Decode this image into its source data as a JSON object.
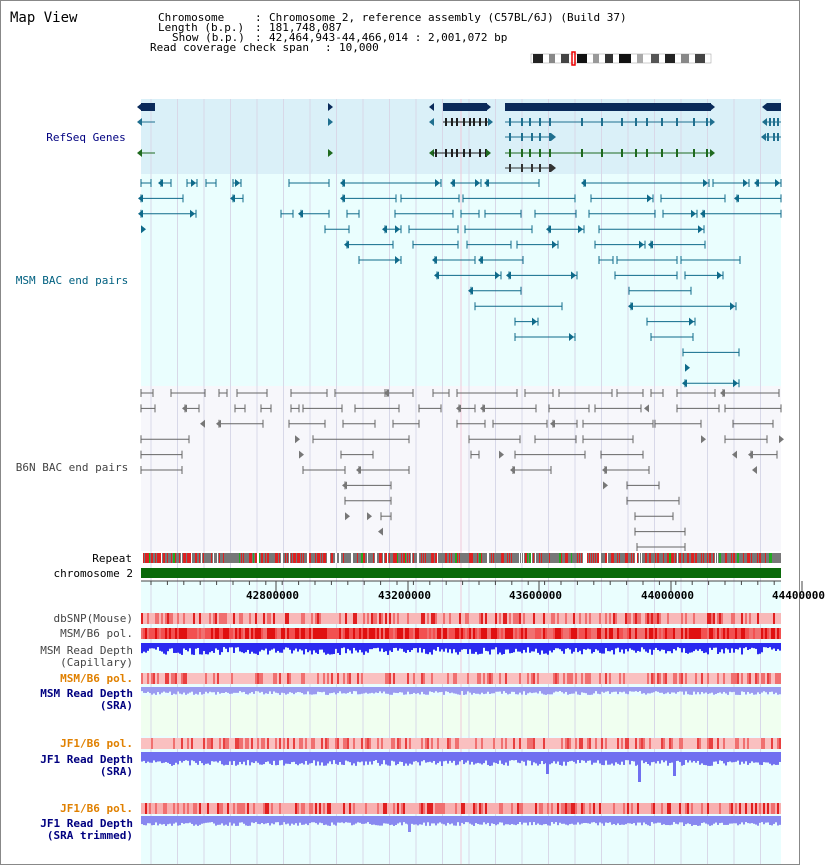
{
  "page": {
    "title": "Map View"
  },
  "header": {
    "chromosome_key": "Chromosome",
    "chromosome_val": "Chromosome 2, reference assembly (C57BL/6J) (Build 37)",
    "length_key": "Length (b.p.)",
    "length_val": "181,748,087",
    "show_key": "Show (b.p.)",
    "show_val": "42,464,943-44,466,014 : 2,001,072 bp",
    "coverage_key": "Read coverage check span",
    "coverage_val": "10,000"
  },
  "tracks": {
    "refseq": "RefSeq Genes",
    "msm_bac": "MSM BAC end pairs",
    "b6n_bac": "B6N BAC end pairs",
    "repeat": "Repeat",
    "chromosome": "chromosome 2",
    "dbsnp": "dbSNP(Mouse)",
    "msm_b6_pol": "MSM/B6 pol.",
    "msm_depth_cap_1": "MSM Read Depth",
    "msm_depth_cap_2": "(Capillary)",
    "msm_b6_pol_2": "MSM/B6 pol.",
    "msm_depth_sra_1": "MSM Read Depth",
    "msm_depth_sra_2": "(SRA)",
    "jf1_b6_pol": "JF1/B6 pol.",
    "jf1_depth_sra_1": "JF1 Read Depth",
    "jf1_depth_sra_2": "(SRA)",
    "jf1_b6_pol_2": "JF1/B6 pol.",
    "jf1_depth_trim_1": "JF1 Read Depth",
    "jf1_depth_trim_2": "(SRA trimmed)"
  },
  "axis": {
    "ticks": [
      "42800000",
      "43200000",
      "43600000",
      "44000000",
      "44400000"
    ]
  },
  "colors": {
    "refseq_bg": "#daf0f8",
    "msm_bg": "#eafefe",
    "b6n_bg": "#f7f7fb",
    "gene_dark": "#0a2a5a",
    "gene_teal": "#1f6f8f",
    "gene_green": "#1f6a1f",
    "msm_line": "#0f6a8a",
    "b6n_line": "#666666",
    "repeat_red": "#dd2222",
    "chrom_green": "#0a6a0a",
    "depth_blue": "#2a2af0",
    "depth_light": "#8888f0",
    "label_blue": "#000080",
    "label_teal": "#006080",
    "label_orange": "#e08000"
  }
}
